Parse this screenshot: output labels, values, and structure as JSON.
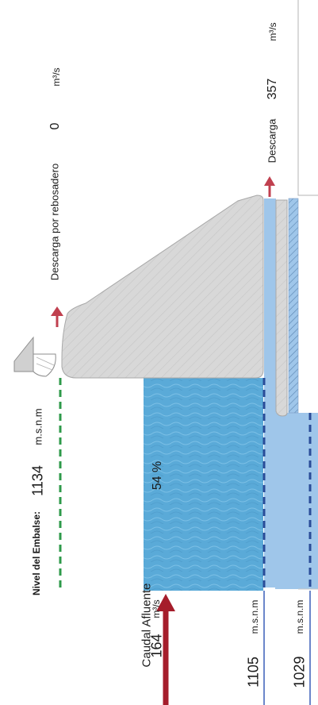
{
  "reservoir_level": {
    "label": "Nivel del Embalse",
    "colon": ":",
    "value": "1134",
    "unit": "m.s.n.m"
  },
  "spillway": {
    "label": "Descarga por rebosadero",
    "value": "0",
    "unit": "m³/s"
  },
  "discharge": {
    "label": "Descarga",
    "value": "357",
    "unit": "m³/s"
  },
  "inflow": {
    "label": "Caudal Afluente",
    "value": "164",
    "unit": "m³/s"
  },
  "level_a": {
    "value": "1105",
    "unit": "m.s.n.m"
  },
  "level_b": {
    "value": "1029",
    "unit": "m.s.n.m"
  },
  "fill": {
    "percent_label": "54 %",
    "fraction": 0.54
  },
  "colors": {
    "water_dark": "#5aaad8",
    "water_light": "#9fc6ea",
    "dam": "#d6d6d6",
    "arrow": "#c0404f",
    "level_line_green": "#2e9a4a",
    "level_line_blue": "#2a4c98",
    "marker_line": "#3a5fb8"
  }
}
